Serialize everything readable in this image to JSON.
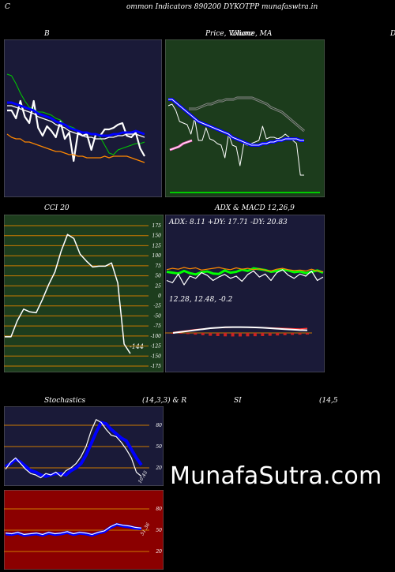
{
  "header": {
    "corner_letter": "C",
    "title": "ommon  Indicators 890200  DYKOTPP munafaswtra.in",
    "right_letter": "D"
  },
  "watermark": "MunafaSutra.com",
  "colors": {
    "panel_dark": "#1a1a38",
    "panel_green": "#1c3c1c",
    "panel_olive": "#1d3d1d",
    "panel_red": "#8b0000",
    "grid_orange": "#cc7a00"
  },
  "chart_data": [
    {
      "id": "bollinger",
      "type": "line",
      "title": "B",
      "series": [
        {
          "color": "#00cc00",
          "values": [
            78,
            77,
            72,
            66,
            61,
            57,
            56,
            54,
            54,
            53,
            52,
            50,
            49,
            46,
            45,
            44,
            42,
            41,
            41,
            40,
            40,
            38,
            33,
            28,
            27,
            30,
            31,
            32,
            33,
            34,
            34,
            35
          ]
        },
        {
          "color": "#ffffff",
          "values": [
            55,
            55,
            50,
            61,
            51,
            47,
            61,
            44,
            39,
            45,
            42,
            38,
            48,
            37,
            41,
            23,
            41,
            39,
            40,
            30,
            40,
            39,
            43,
            43,
            44,
            46,
            47,
            39,
            38,
            41,
            31,
            26
          ]
        },
        {
          "color": "#0000ff",
          "values": [
            60,
            60,
            59,
            58,
            57,
            56,
            55,
            53,
            52,
            51,
            50,
            48,
            47,
            46,
            44,
            43,
            42,
            41,
            41,
            40,
            40,
            39,
            39,
            39,
            40,
            40,
            41,
            41,
            41,
            42,
            41,
            40
          ]
        },
        {
          "color": "#ffffff",
          "values": [
            58,
            58,
            57,
            56,
            55,
            54,
            53,
            51,
            50,
            49,
            48,
            46,
            45,
            44,
            42,
            41,
            40,
            39,
            38,
            38,
            37,
            37,
            37,
            38,
            38,
            39,
            39,
            40,
            40,
            40,
            39,
            38
          ]
        },
        {
          "color": "#ff8800",
          "values": [
            40,
            38,
            37,
            37,
            35,
            35,
            34,
            33,
            32,
            31,
            30,
            29,
            29,
            28,
            27,
            27,
            26,
            26,
            25,
            25,
            25,
            25,
            26,
            25,
            26,
            26,
            26,
            26,
            25,
            24,
            23,
            22
          ]
        }
      ]
    },
    {
      "id": "price_ma",
      "type": "line",
      "title": "Price,  Volume,  MA",
      "overlay_text": "Ulianz",
      "series": [
        {
          "color": "#ffffff",
          "values": [
            58,
            59,
            55,
            48,
            47,
            46,
            40,
            50,
            36,
            36,
            44,
            37,
            36,
            34,
            33,
            25,
            40,
            33,
            32,
            20,
            34,
            33,
            34,
            35,
            36,
            45,
            37,
            38,
            38,
            37,
            38,
            40,
            38,
            36,
            34,
            14,
            14
          ]
        },
        {
          "color": "#0000ff",
          "values": [
            62,
            62,
            60,
            58,
            56,
            54,
            52,
            50,
            48,
            47,
            46,
            45,
            44,
            43,
            42,
            41,
            40,
            38,
            37,
            36,
            35,
            34,
            33,
            33,
            33,
            34,
            34,
            35,
            35,
            36,
            36,
            37,
            37,
            37,
            37,
            36,
            36
          ]
        },
        {
          "color": "#dddddd",
          "values": [
            56,
            56,
            56,
            57,
            58,
            59,
            59,
            60,
            61,
            61,
            62,
            62,
            62,
            63,
            63,
            63,
            63,
            63,
            62,
            61,
            60,
            59,
            57,
            56,
            55,
            54,
            52,
            50,
            48,
            46,
            44,
            42
          ]
        },
        {
          "color": "#ff66cc",
          "values": [
            30,
            31,
            32,
            34,
            35,
            36
          ]
        },
        {
          "color": "#00cc00",
          "values": [
            3,
            3,
            3,
            3,
            3,
            3,
            3,
            3,
            3,
            3,
            3,
            3,
            3,
            3,
            3,
            3,
            3,
            3,
            3,
            3,
            3,
            3,
            3,
            3,
            3,
            3,
            3,
            3,
            3,
            3,
            3,
            3
          ]
        }
      ]
    },
    {
      "id": "cci",
      "type": "line",
      "title": "CCI 20",
      "y_ticks": [
        175,
        150,
        125,
        100,
        75,
        50,
        25,
        0,
        -25,
        -50,
        -75,
        -100,
        -125,
        -150,
        -175
      ],
      "ylim": [
        -175,
        175
      ],
      "value_label": "-144",
      "series": [
        {
          "color": "#ffffff",
          "values": [
            -102,
            -102,
            -62,
            -33,
            -40,
            -42,
            -9,
            28,
            60,
            112,
            153,
            143,
            104,
            87,
            72,
            74,
            74,
            82,
            32,
            -120,
            -144
          ]
        }
      ]
    },
    {
      "id": "adx_macd",
      "type": "line",
      "title": "ADX  & MACD 12,26,9",
      "adx_text": "ADX: 8.11 +DY: 17.71 -DY: 20.83",
      "macd_text": "12.28,  12.48,  -0.2",
      "adx_series": [
        {
          "color": "#00ff00",
          "values": [
            50,
            48,
            46,
            52,
            47,
            44,
            49,
            51,
            46,
            45,
            53,
            48,
            50,
            55,
            52,
            58,
            56,
            54,
            50,
            52,
            55,
            53,
            49,
            51,
            47,
            50,
            53,
            48
          ]
        },
        {
          "color": "#ff8800",
          "values": [
            55,
            58,
            56,
            60,
            57,
            59,
            54,
            56,
            58,
            60,
            57,
            55,
            59,
            56,
            58,
            55,
            57,
            54,
            52,
            56,
            58,
            55,
            53,
            54,
            52,
            56,
            52,
            50
          ]
        },
        {
          "color": "#ffffff",
          "values": [
            30,
            25,
            45,
            20,
            40,
            35,
            48,
            42,
            30,
            38,
            44,
            35,
            40,
            28,
            44,
            52,
            38,
            45,
            30,
            48,
            55,
            42,
            35,
            45,
            40,
            52,
            30,
            38
          ]
        }
      ],
      "macd_series": [
        {
          "color": "#ffffff",
          "values": [
            12.0,
            12.1,
            12.2,
            12.3,
            12.4,
            12.5,
            12.55,
            12.6,
            12.62,
            12.62,
            12.6,
            12.58,
            12.55,
            12.5,
            12.45,
            12.4,
            12.35,
            12.3,
            12.28
          ]
        },
        {
          "color": "#ff3333",
          "values": [
            12.05,
            12.15,
            12.25,
            12.35,
            12.42,
            12.5,
            12.55,
            12.58,
            12.6,
            12.6,
            12.6,
            12.58,
            12.56,
            12.53,
            12.5,
            12.48,
            12.45,
            12.42,
            12.48
          ]
        }
      ]
    },
    {
      "id": "stochastics",
      "type": "line",
      "title": "Stochastics",
      "params": "(14,3,3) & R",
      "y_ticks": [
        80,
        50,
        20
      ],
      "value_label": "10.45",
      "series": [
        {
          "color": "#0000ff",
          "values": [
            22,
            26,
            32,
            28,
            22,
            16,
            14,
            10,
            8,
            10,
            12,
            12,
            10,
            16,
            20,
            26,
            38,
            54,
            70,
            84,
            82,
            74,
            68,
            62,
            58,
            46,
            34,
            24
          ]
        },
        {
          "color": "#ffffff",
          "values": [
            18,
            28,
            34,
            26,
            18,
            12,
            10,
            6,
            12,
            10,
            14,
            8,
            16,
            20,
            26,
            36,
            50,
            72,
            88,
            84,
            74,
            66,
            64,
            56,
            46,
            34,
            14,
            8
          ]
        }
      ]
    },
    {
      "id": "rsi",
      "type": "line",
      "title": "SI",
      "params": "(14,5",
      "y_ticks": [
        80,
        50,
        20
      ],
      "value_label": "51.36",
      "series": [
        {
          "color": "#0000ff",
          "values": [
            45,
            44,
            46,
            43,
            44,
            45,
            43,
            46,
            44,
            45,
            47,
            44,
            46,
            45,
            43,
            46,
            48,
            54,
            58,
            56,
            55,
            53,
            52
          ]
        },
        {
          "color": "#ffffff",
          "values": [
            46,
            45,
            47,
            44,
            45,
            46,
            44,
            47,
            45,
            46,
            48,
            45,
            47,
            46,
            44,
            47,
            49,
            55,
            59,
            57,
            56,
            54,
            53
          ]
        }
      ]
    }
  ]
}
